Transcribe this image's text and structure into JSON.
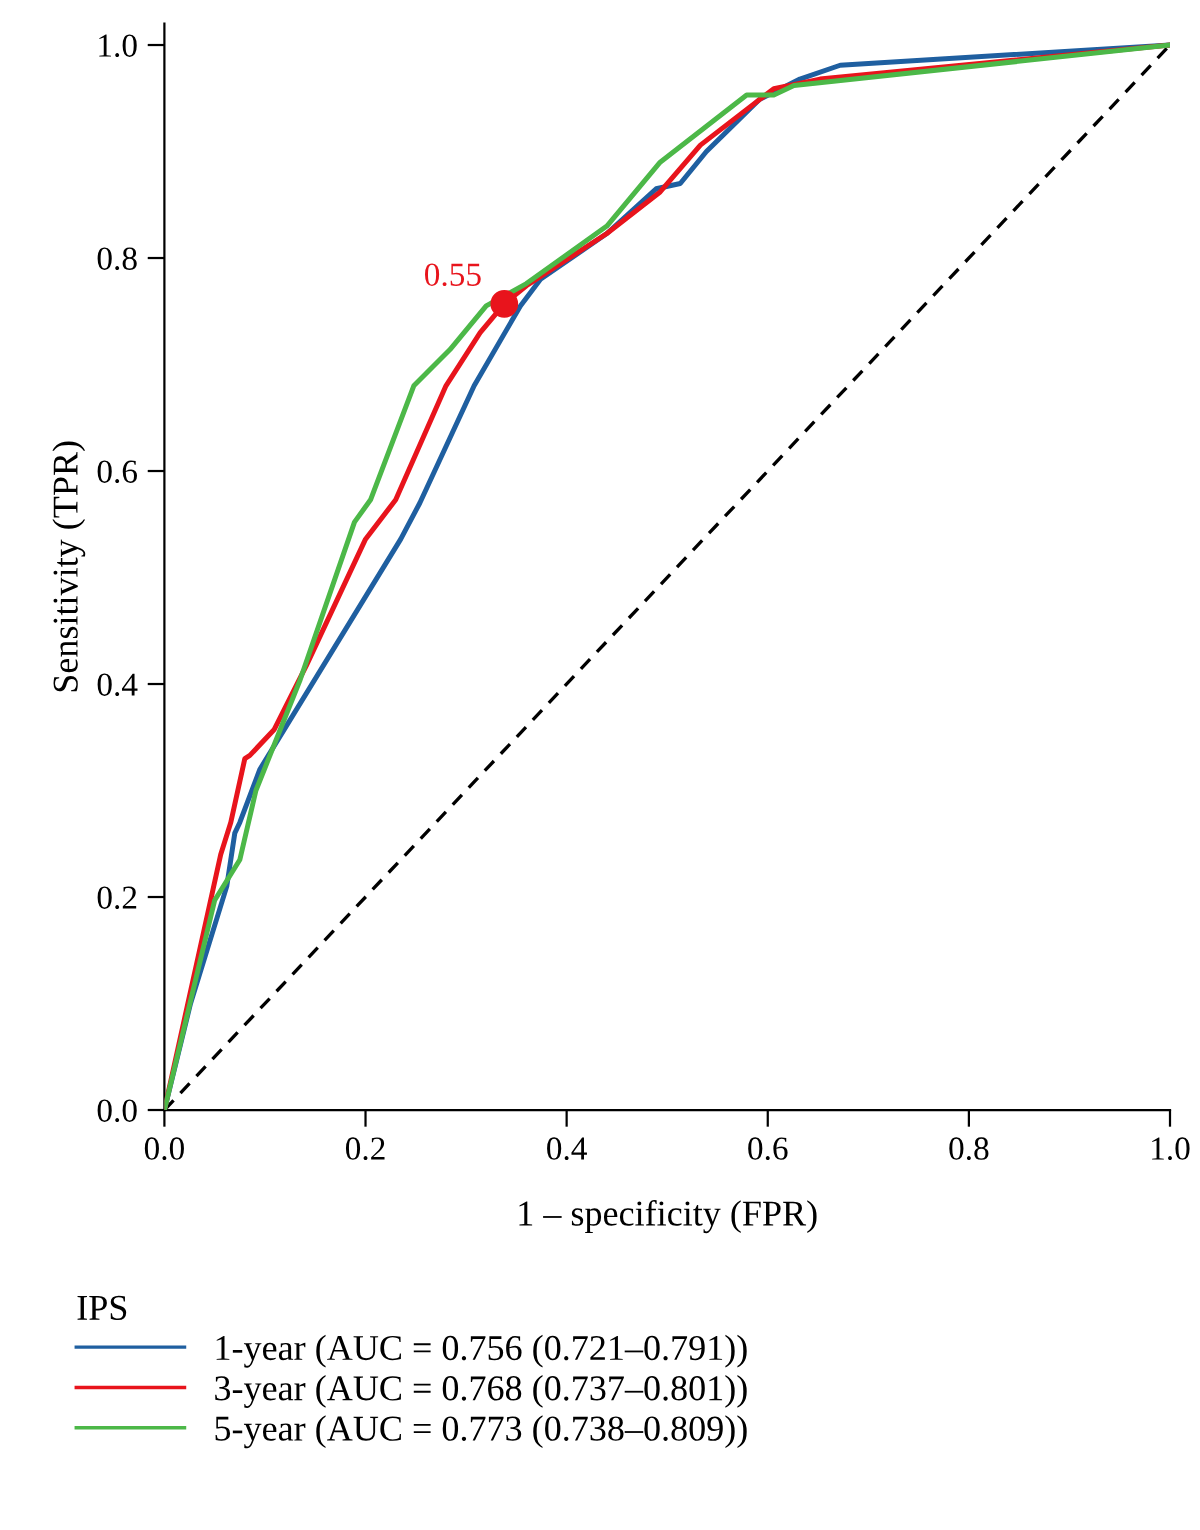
{
  "chart_data": {
    "type": "line",
    "xlabel": "1 – specificity (FPR)",
    "ylabel": "Sensitivity (TPR)",
    "legend_title": "IPS",
    "legend": "bottom",
    "grid": false,
    "marker": "none",
    "xlim": [
      0,
      1.0
    ],
    "ylim": [
      0,
      1.02
    ],
    "xticks": [
      {
        "value": 0,
        "label": "0.0"
      },
      0.2,
      0.4,
      0.6,
      0.8,
      {
        "value": 1,
        "label": "1.0"
      }
    ],
    "yticks": [
      {
        "value": 0,
        "label": "0.0"
      },
      0.2,
      0.4,
      0.6,
      0.8,
      {
        "value": 1,
        "label": "1.0"
      }
    ],
    "series": [
      {
        "name": "1-year (AUC = 0.756 (0.721–0.791))",
        "color": "#1f5fa0",
        "x": [
          0,
          0.026,
          0.062,
          0.07,
          0.075,
          0.095,
          0.235,
          0.254,
          0.308,
          0.354,
          0.374,
          0.44,
          0.489,
          0.513,
          0.539,
          0.592,
          0.632,
          0.672,
          1.0
        ],
        "values": [
          0,
          0.1,
          0.21,
          0.26,
          0.27,
          0.32,
          0.536,
          0.57,
          0.68,
          0.755,
          0.78,
          0.823,
          0.865,
          0.87,
          0.9,
          0.949,
          0.968,
          0.981,
          1.0
        ]
      },
      {
        "name": "3-year (AUC = 0.768 (0.737–0.801))",
        "color": "#e8141c",
        "x": [
          0,
          0.056,
          0.066,
          0.08,
          0.085,
          0.109,
          0.141,
          0.2,
          0.23,
          0.28,
          0.314,
          0.338,
          0.36,
          0.44,
          0.493,
          0.533,
          0.606,
          0.652,
          1.0
        ],
        "values": [
          0,
          0.24,
          0.27,
          0.33,
          0.333,
          0.357,
          0.417,
          0.536,
          0.573,
          0.68,
          0.73,
          0.757,
          0.774,
          0.823,
          0.862,
          0.906,
          0.959,
          0.968,
          1.0
        ]
      },
      {
        "name": "5-year (AUC = 0.773 (0.738–0.809))",
        "color": "#4cb848",
        "x": [
          0,
          0.05,
          0.075,
          0.091,
          0.135,
          0.189,
          0.205,
          0.248,
          0.284,
          0.32,
          0.36,
          0.44,
          0.493,
          0.579,
          0.606,
          0.626,
          1.0
        ],
        "values": [
          0,
          0.197,
          0.235,
          0.3,
          0.404,
          0.552,
          0.573,
          0.68,
          0.714,
          0.755,
          0.776,
          0.83,
          0.89,
          0.953,
          0.953,
          0.962,
          1.0
        ]
      },
      {
        "type": "line",
        "color": "#000000",
        "line_style": "dashed",
        "x": [
          0,
          1.0
        ],
        "values": [
          0,
          1.0
        ]
      },
      {
        "type": "scatter",
        "color": "#e8141c",
        "marker": "circle",
        "x": [
          0.338
        ],
        "values": [
          0.757
        ]
      }
    ],
    "annotations": [
      {
        "text": "0.55",
        "x": 0.338,
        "y": 0.757
      }
    ]
  }
}
